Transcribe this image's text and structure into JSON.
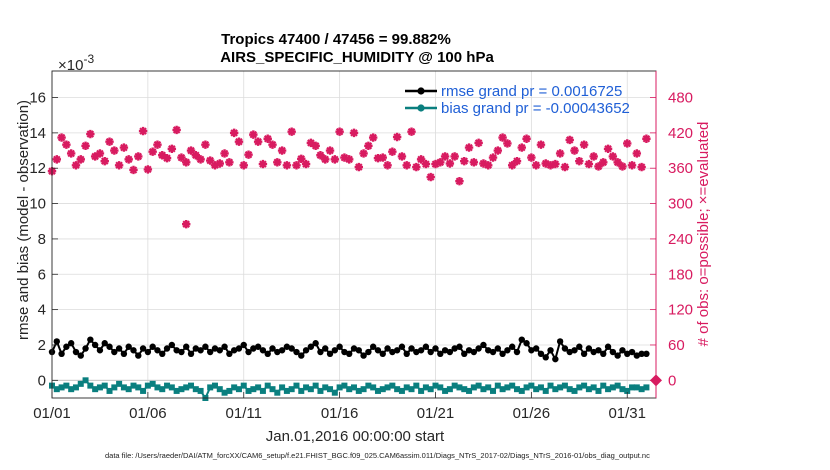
{
  "chart_data": {
    "type": "line",
    "title": "Tropics 47400 / 47456 = 99.882%",
    "subtitle": "AIRS_SPECIFIC_HUMIDITY @ 100 hPa",
    "xlabel": "Jan.01,2016 00:00:00 start",
    "ylabel": "rmse and bias (model - observation)",
    "y2label": "# of obs: o=possible; ×=evaluated",
    "y_exponent": "×10",
    "y_exponent_power": "-3",
    "footer": "data file: /Users/raeder/DAI/ATM_forcXX/CAM6_setup/f.e21.FHIST_BGC.f09_025.CAM6assim.011/Diags_NTrS_2017-02/Diags_NTrS_2016-01/obs_diag_output.nc",
    "xlim": [
      1,
      32.5
    ],
    "ylim": [
      -1,
      17.5
    ],
    "y2lim": [
      -30,
      525
    ],
    "x_ticks": [
      1,
      6,
      11,
      16,
      21,
      26,
      31
    ],
    "x_tick_labels": [
      "01/01",
      "01/06",
      "01/11",
      "01/16",
      "01/21",
      "01/26",
      "01/31"
    ],
    "y_ticks": [
      0,
      2,
      4,
      6,
      8,
      10,
      12,
      14,
      16
    ],
    "y_tick_labels": [
      "0",
      "2",
      "4",
      "6",
      "8",
      "10",
      "12",
      "14",
      "16"
    ],
    "y2_ticks": [
      0,
      60,
      120,
      180,
      240,
      300,
      360,
      420,
      480
    ],
    "y2_tick_labels": [
      "0",
      "60",
      "120",
      "180",
      "240",
      "300",
      "360",
      "420",
      "480"
    ],
    "colors": {
      "rmse": "#000000",
      "bias": "#0a7f7f",
      "obs": "#d81b60",
      "legend_text": "#1f5fd6",
      "axis": "#262626",
      "grid": "#dcdcdc"
    },
    "legend": [
      {
        "name": "rmse grand pr = 0.0016725",
        "color": "#000000"
      },
      {
        "name": "bias grand pr = -0.00043652",
        "color": "#0a7f7f"
      }
    ],
    "series": [
      {
        "name": "rmse",
        "color": "#000000",
        "x": [
          1.0,
          1.25,
          1.5,
          1.75,
          2.0,
          2.25,
          2.5,
          2.75,
          3.0,
          3.25,
          3.5,
          3.75,
          4.0,
          4.25,
          4.5,
          4.75,
          5.0,
          5.25,
          5.5,
          5.75,
          6.0,
          6.25,
          6.5,
          6.75,
          7.0,
          7.25,
          7.5,
          7.75,
          8.0,
          8.25,
          8.5,
          8.75,
          9.0,
          9.25,
          9.5,
          9.75,
          10.0,
          10.25,
          10.5,
          10.75,
          11.0,
          11.25,
          11.5,
          11.75,
          12.0,
          12.25,
          12.5,
          12.75,
          13.0,
          13.25,
          13.5,
          13.75,
          14.0,
          14.25,
          14.5,
          14.75,
          15.0,
          15.25,
          15.5,
          15.75,
          16.0,
          16.25,
          16.5,
          16.75,
          17.0,
          17.25,
          17.5,
          17.75,
          18.0,
          18.25,
          18.5,
          18.75,
          19.0,
          19.25,
          19.5,
          19.75,
          20.0,
          20.25,
          20.5,
          20.75,
          21.0,
          21.25,
          21.5,
          21.75,
          22.0,
          22.25,
          22.5,
          22.75,
          23.0,
          23.25,
          23.5,
          23.75,
          24.0,
          24.25,
          24.5,
          24.75,
          25.0,
          25.25,
          25.5,
          25.75,
          26.0,
          26.25,
          26.5,
          26.75,
          27.0,
          27.25,
          27.5,
          27.75,
          28.0,
          28.25,
          28.5,
          28.75,
          29.0,
          29.25,
          29.5,
          29.75,
          30.0,
          30.25,
          30.5,
          30.75,
          31.0,
          31.25,
          31.5,
          31.75,
          32.0
        ],
        "values": [
          1.6,
          2.2,
          1.5,
          1.9,
          2.1,
          1.6,
          1.4,
          1.8,
          2.3,
          2.0,
          1.7,
          2.1,
          1.9,
          1.6,
          1.8,
          1.5,
          1.9,
          1.7,
          1.4,
          1.8,
          1.6,
          1.9,
          1.7,
          1.5,
          1.8,
          2.0,
          1.7,
          1.6,
          1.9,
          1.5,
          1.8,
          1.7,
          1.9,
          1.6,
          1.8,
          1.7,
          1.9,
          1.5,
          1.7,
          1.8,
          2.0,
          1.6,
          1.8,
          1.9,
          1.7,
          1.5,
          1.8,
          1.6,
          1.7,
          1.9,
          1.8,
          1.6,
          1.4,
          1.7,
          1.9,
          2.1,
          1.6,
          1.8,
          1.5,
          1.7,
          1.9,
          1.6,
          1.5,
          1.8,
          1.7,
          1.4,
          1.6,
          1.9,
          1.7,
          1.5,
          1.8,
          1.6,
          1.7,
          1.9,
          1.5,
          1.8,
          1.6,
          1.7,
          1.9,
          1.6,
          1.8,
          1.5,
          1.7,
          1.6,
          1.8,
          1.9,
          1.5,
          1.7,
          1.6,
          1.8,
          2.0,
          1.7,
          1.6,
          1.8,
          1.5,
          1.7,
          1.9,
          1.6,
          2.3,
          2.1,
          1.7,
          1.8,
          1.5,
          1.3,
          1.7,
          1.2,
          2.2,
          1.8,
          1.6,
          1.7,
          1.9,
          1.5,
          1.8,
          1.6,
          1.7,
          1.5,
          1.9,
          1.6,
          1.4,
          1.7,
          1.5,
          1.6,
          1.4,
          1.5,
          1.5
        ]
      },
      {
        "name": "bias",
        "color": "#0a7f7f",
        "x": [
          1.0,
          1.25,
          1.5,
          1.75,
          2.0,
          2.25,
          2.5,
          2.75,
          3.0,
          3.25,
          3.5,
          3.75,
          4.0,
          4.25,
          4.5,
          4.75,
          5.0,
          5.25,
          5.5,
          5.75,
          6.0,
          6.25,
          6.5,
          6.75,
          7.0,
          7.25,
          7.5,
          7.75,
          8.0,
          8.25,
          8.5,
          8.75,
          9.0,
          9.25,
          9.5,
          9.75,
          10.0,
          10.25,
          10.5,
          10.75,
          11.0,
          11.25,
          11.5,
          11.75,
          12.0,
          12.25,
          12.5,
          12.75,
          13.0,
          13.25,
          13.5,
          13.75,
          14.0,
          14.25,
          14.5,
          14.75,
          15.0,
          15.25,
          15.5,
          15.75,
          16.0,
          16.25,
          16.5,
          16.75,
          17.0,
          17.25,
          17.5,
          17.75,
          18.0,
          18.25,
          18.5,
          18.75,
          19.0,
          19.25,
          19.5,
          19.75,
          20.0,
          20.25,
          20.5,
          20.75,
          21.0,
          21.25,
          21.5,
          21.75,
          22.0,
          22.25,
          22.5,
          22.75,
          23.0,
          23.25,
          23.5,
          23.75,
          24.0,
          24.25,
          24.5,
          24.75,
          25.0,
          25.25,
          25.5,
          25.75,
          26.0,
          26.25,
          26.5,
          26.75,
          27.0,
          27.25,
          27.5,
          27.75,
          28.0,
          28.25,
          28.5,
          28.75,
          29.0,
          29.25,
          29.5,
          29.75,
          30.0,
          30.25,
          30.5,
          30.75,
          31.0,
          31.25,
          31.5,
          31.75,
          32.0
        ],
        "values": [
          -0.3,
          -0.5,
          -0.4,
          -0.3,
          -0.5,
          -0.4,
          -0.2,
          0.0,
          -0.3,
          -0.5,
          -0.4,
          -0.3,
          -0.6,
          -0.4,
          -0.2,
          -0.4,
          -0.5,
          -0.3,
          -0.4,
          -0.6,
          -0.3,
          -0.2,
          -0.4,
          -0.5,
          -0.3,
          -0.4,
          -0.6,
          -0.5,
          -0.4,
          -0.3,
          -0.5,
          -0.6,
          -1.0,
          -0.4,
          -0.3,
          -0.5,
          -0.7,
          -0.6,
          -0.4,
          -0.5,
          -0.3,
          -0.6,
          -0.5,
          -0.4,
          -0.6,
          -0.3,
          -0.5,
          -0.7,
          -0.4,
          -0.6,
          -0.5,
          -0.3,
          -0.6,
          -0.4,
          -0.5,
          -0.3,
          -0.6,
          -0.4,
          -0.5,
          -0.7,
          -0.4,
          -0.3,
          -0.5,
          -0.4,
          -0.6,
          -0.5,
          -0.3,
          -0.4,
          -0.6,
          -0.5,
          -0.4,
          -0.3,
          -0.5,
          -0.6,
          -0.4,
          -0.5,
          -0.3,
          -0.6,
          -0.4,
          -0.5,
          -0.3,
          -0.4,
          -0.6,
          -0.5,
          -0.3,
          -0.4,
          -0.5,
          -0.6,
          -0.4,
          -0.3,
          -0.5,
          -0.4,
          -0.6,
          -0.3,
          -0.5,
          -0.4,
          -0.3,
          -0.5,
          -0.6,
          -0.4,
          -0.3,
          -0.5,
          -0.4,
          -0.6,
          -0.3,
          -0.5,
          -0.4,
          -0.3,
          -0.5,
          -0.6,
          -0.4,
          -0.3,
          -0.5,
          -0.4,
          -0.6,
          -0.3,
          -0.5,
          -0.4,
          -0.3,
          -0.5,
          -0.6,
          -0.4,
          -0.4,
          -0.5,
          -0.4
        ]
      },
      {
        "name": "# obs possible / evaluated",
        "axis": "right",
        "color": "#d81b60",
        "x": [
          1.0,
          1.25,
          1.5,
          1.75,
          2.0,
          2.25,
          2.5,
          2.75,
          3.0,
          3.25,
          3.5,
          3.75,
          4.0,
          4.25,
          4.5,
          4.75,
          5.0,
          5.25,
          5.5,
          5.75,
          6.0,
          6.25,
          6.5,
          6.75,
          7.0,
          7.25,
          7.5,
          7.75,
          8.0,
          8.25,
          8.5,
          8.75,
          9.0,
          9.25,
          9.5,
          9.75,
          10.0,
          10.25,
          10.5,
          10.75,
          11.0,
          11.25,
          11.5,
          11.75,
          12.0,
          12.25,
          12.5,
          12.75,
          13.0,
          13.25,
          13.5,
          13.75,
          14.0,
          14.25,
          14.5,
          14.75,
          15.0,
          15.25,
          15.5,
          15.75,
          16.0,
          16.25,
          16.5,
          16.75,
          17.0,
          17.25,
          17.5,
          17.75,
          18.0,
          18.25,
          18.5,
          18.75,
          19.0,
          19.25,
          19.5,
          19.75,
          20.0,
          20.25,
          20.5,
          20.75,
          21.0,
          21.25,
          21.5,
          21.75,
          22.0,
          22.25,
          22.5,
          22.75,
          23.0,
          23.25,
          23.5,
          23.75,
          24.0,
          24.25,
          24.5,
          24.75,
          25.0,
          25.25,
          25.5,
          25.75,
          26.0,
          26.25,
          26.5,
          26.75,
          27.0,
          27.25,
          27.5,
          27.75,
          28.0,
          28.25,
          28.5,
          28.75,
          29.0,
          29.25,
          29.5,
          29.75,
          30.0,
          30.25,
          30.5,
          30.75,
          31.0,
          31.25,
          31.5,
          31.75,
          32.0
        ],
        "values": [
          355,
          375,
          412,
          400,
          385,
          365,
          375,
          398,
          418,
          380,
          385,
          372,
          405,
          390,
          365,
          395,
          375,
          357,
          380,
          423,
          358,
          388,
          400,
          382,
          377,
          393,
          425,
          378,
          370,
          390,
          382,
          375,
          400,
          373,
          365,
          368,
          385,
          370,
          420,
          405,
          365,
          383,
          417,
          405,
          367,
          410,
          400,
          370,
          390,
          365,
          422,
          365,
          376,
          367,
          403,
          398,
          382,
          375,
          390,
          375,
          422,
          378,
          375,
          420,
          362,
          385,
          398,
          412,
          377,
          378,
          365,
          388,
          413,
          380,
          365,
          422,
          362,
          375,
          367,
          345,
          367,
          370,
          380,
          368,
          380,
          338,
          372,
          395,
          370,
          403,
          368,
          365,
          378,
          390,
          412,
          402,
          365,
          372,
          395,
          410,
          378,
          365,
          400,
          368,
          365,
          367,
          385,
          362,
          408,
          390,
          372,
          400,
          367,
          380,
          363,
          370,
          393,
          380,
          370,
          363,
          402,
          365,
          385,
          362,
          410
        ],
        "outlier": {
          "x": 8.0,
          "value": 265
        },
        "end_marker": {
          "x": 32.5,
          "value": 0
        }
      }
    ]
  }
}
